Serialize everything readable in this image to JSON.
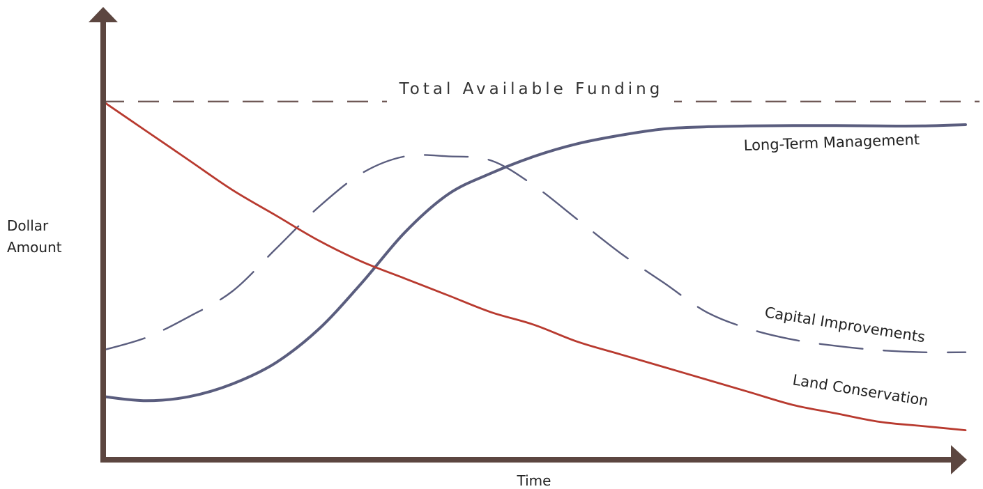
{
  "chart_data": {
    "type": "line",
    "title": "",
    "xlabel": "Time",
    "ylabel": [
      "Dollar",
      "Amount"
    ],
    "xlim": [
      0,
      1
    ],
    "ylim": [
      0,
      1
    ],
    "axis_ticks": "none",
    "grid": false,
    "legend": "inline labels",
    "reference_line": {
      "label": "Total Available Funding",
      "y": 0.85,
      "style": "dashed",
      "color": "#6b5552"
    },
    "series": [
      {
        "name": "Long-Term Management",
        "style": "solid",
        "color": "#5a5d7e",
        "x": [
          0.0,
          0.05,
          0.1,
          0.15,
          0.2,
          0.25,
          0.3,
          0.35,
          0.4,
          0.45,
          0.5,
          0.55,
          0.6,
          0.65,
          0.7,
          0.75,
          0.8,
          0.85,
          0.9,
          0.95,
          1.0
        ],
        "y": [
          0.15,
          0.14,
          0.15,
          0.18,
          0.23,
          0.31,
          0.42,
          0.54,
          0.63,
          0.68,
          0.72,
          0.75,
          0.77,
          0.785,
          0.79,
          0.792,
          0.793,
          0.793,
          0.792,
          0.792,
          0.795
        ]
      },
      {
        "name": "Capital Improvements",
        "style": "dashed",
        "color": "#5a5d7e",
        "x": [
          0.0,
          0.05,
          0.1,
          0.15,
          0.2,
          0.25,
          0.3,
          0.35,
          0.4,
          0.45,
          0.5,
          0.55,
          0.6,
          0.65,
          0.7,
          0.75,
          0.8,
          0.85,
          0.9,
          0.95,
          1.0
        ],
        "y": [
          0.26,
          0.29,
          0.34,
          0.4,
          0.5,
          0.6,
          0.68,
          0.72,
          0.72,
          0.71,
          0.65,
          0.57,
          0.49,
          0.42,
          0.35,
          0.31,
          0.285,
          0.27,
          0.26,
          0.255,
          0.255
        ]
      },
      {
        "name": "Land Conservation",
        "style": "solid",
        "color": "#b83a2f",
        "x": [
          0.0,
          0.05,
          0.1,
          0.15,
          0.2,
          0.25,
          0.3,
          0.35,
          0.4,
          0.45,
          0.5,
          0.55,
          0.6,
          0.65,
          0.7,
          0.75,
          0.8,
          0.85,
          0.9,
          0.95,
          1.0
        ],
        "y": [
          0.85,
          0.78,
          0.71,
          0.64,
          0.58,
          0.52,
          0.47,
          0.43,
          0.39,
          0.35,
          0.32,
          0.28,
          0.25,
          0.22,
          0.19,
          0.16,
          0.13,
          0.11,
          0.09,
          0.08,
          0.07
        ]
      }
    ]
  },
  "colors": {
    "axis": "#5c4640",
    "background": "#ffffff"
  }
}
